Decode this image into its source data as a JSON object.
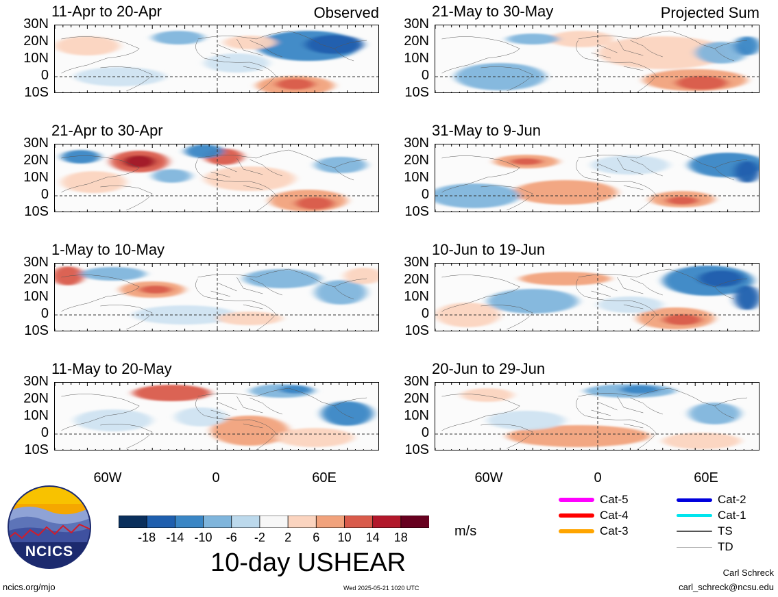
{
  "panels_left": [
    {
      "title": "11-Apr to 20-Apr",
      "corner": "Observed"
    },
    {
      "title": "21-Apr to 30-Apr",
      "corner": ""
    },
    {
      "title": "1-May to 10-May",
      "corner": ""
    },
    {
      "title": "11-May to 20-May",
      "corner": ""
    }
  ],
  "panels_right": [
    {
      "title": "21-May to 30-May",
      "corner": "Projected Sum"
    },
    {
      "title": "31-May to 9-Jun",
      "corner": ""
    },
    {
      "title": "10-Jun to 19-Jun",
      "corner": ""
    },
    {
      "title": "20-Jun to 29-Jun",
      "corner": ""
    }
  ],
  "lat_labels": [
    "30N",
    "20N",
    "10N",
    "0",
    "10S"
  ],
  "lon_labels": [
    "60W",
    "0",
    "60E"
  ],
  "colorbar": {
    "ticks": [
      "-18",
      "-14",
      "-10",
      "-6",
      "-2",
      "2",
      "6",
      "10",
      "14",
      "18"
    ],
    "colors": [
      "#0a2f5c",
      "#1f5fae",
      "#3a86c5",
      "#7fb5dc",
      "#bcd9ec",
      "#f7f7f7",
      "#fbd4bf",
      "#f1a27c",
      "#d95b4b",
      "#b2182b",
      "#67001f"
    ],
    "units": "m/s",
    "title": "10-day USHEAR"
  },
  "legend": [
    {
      "label": "Cat-5",
      "color": "#ff00ff",
      "weight": 6
    },
    {
      "label": "Cat-4",
      "color": "#ff0000",
      "weight": 6
    },
    {
      "label": "Cat-3",
      "color": "#ffa500",
      "weight": 6
    },
    {
      "label": "Cat-2",
      "color": "#0000dd",
      "weight": 5
    },
    {
      "label": "Cat-1",
      "color": "#00e5ee",
      "weight": 4
    },
    {
      "label": "TS",
      "color": "#555555",
      "weight": 2
    },
    {
      "label": "TD",
      "color": "#aaaaaa",
      "weight": 1
    }
  ],
  "logo": {
    "text": "NCICS"
  },
  "footer": {
    "url": "ncics.org/mjo",
    "timestamp": "Wed 2025-05-21 1020 UTC",
    "author": "Carl Schreck",
    "email": "carl_schreck@ncsu.edu"
  }
}
